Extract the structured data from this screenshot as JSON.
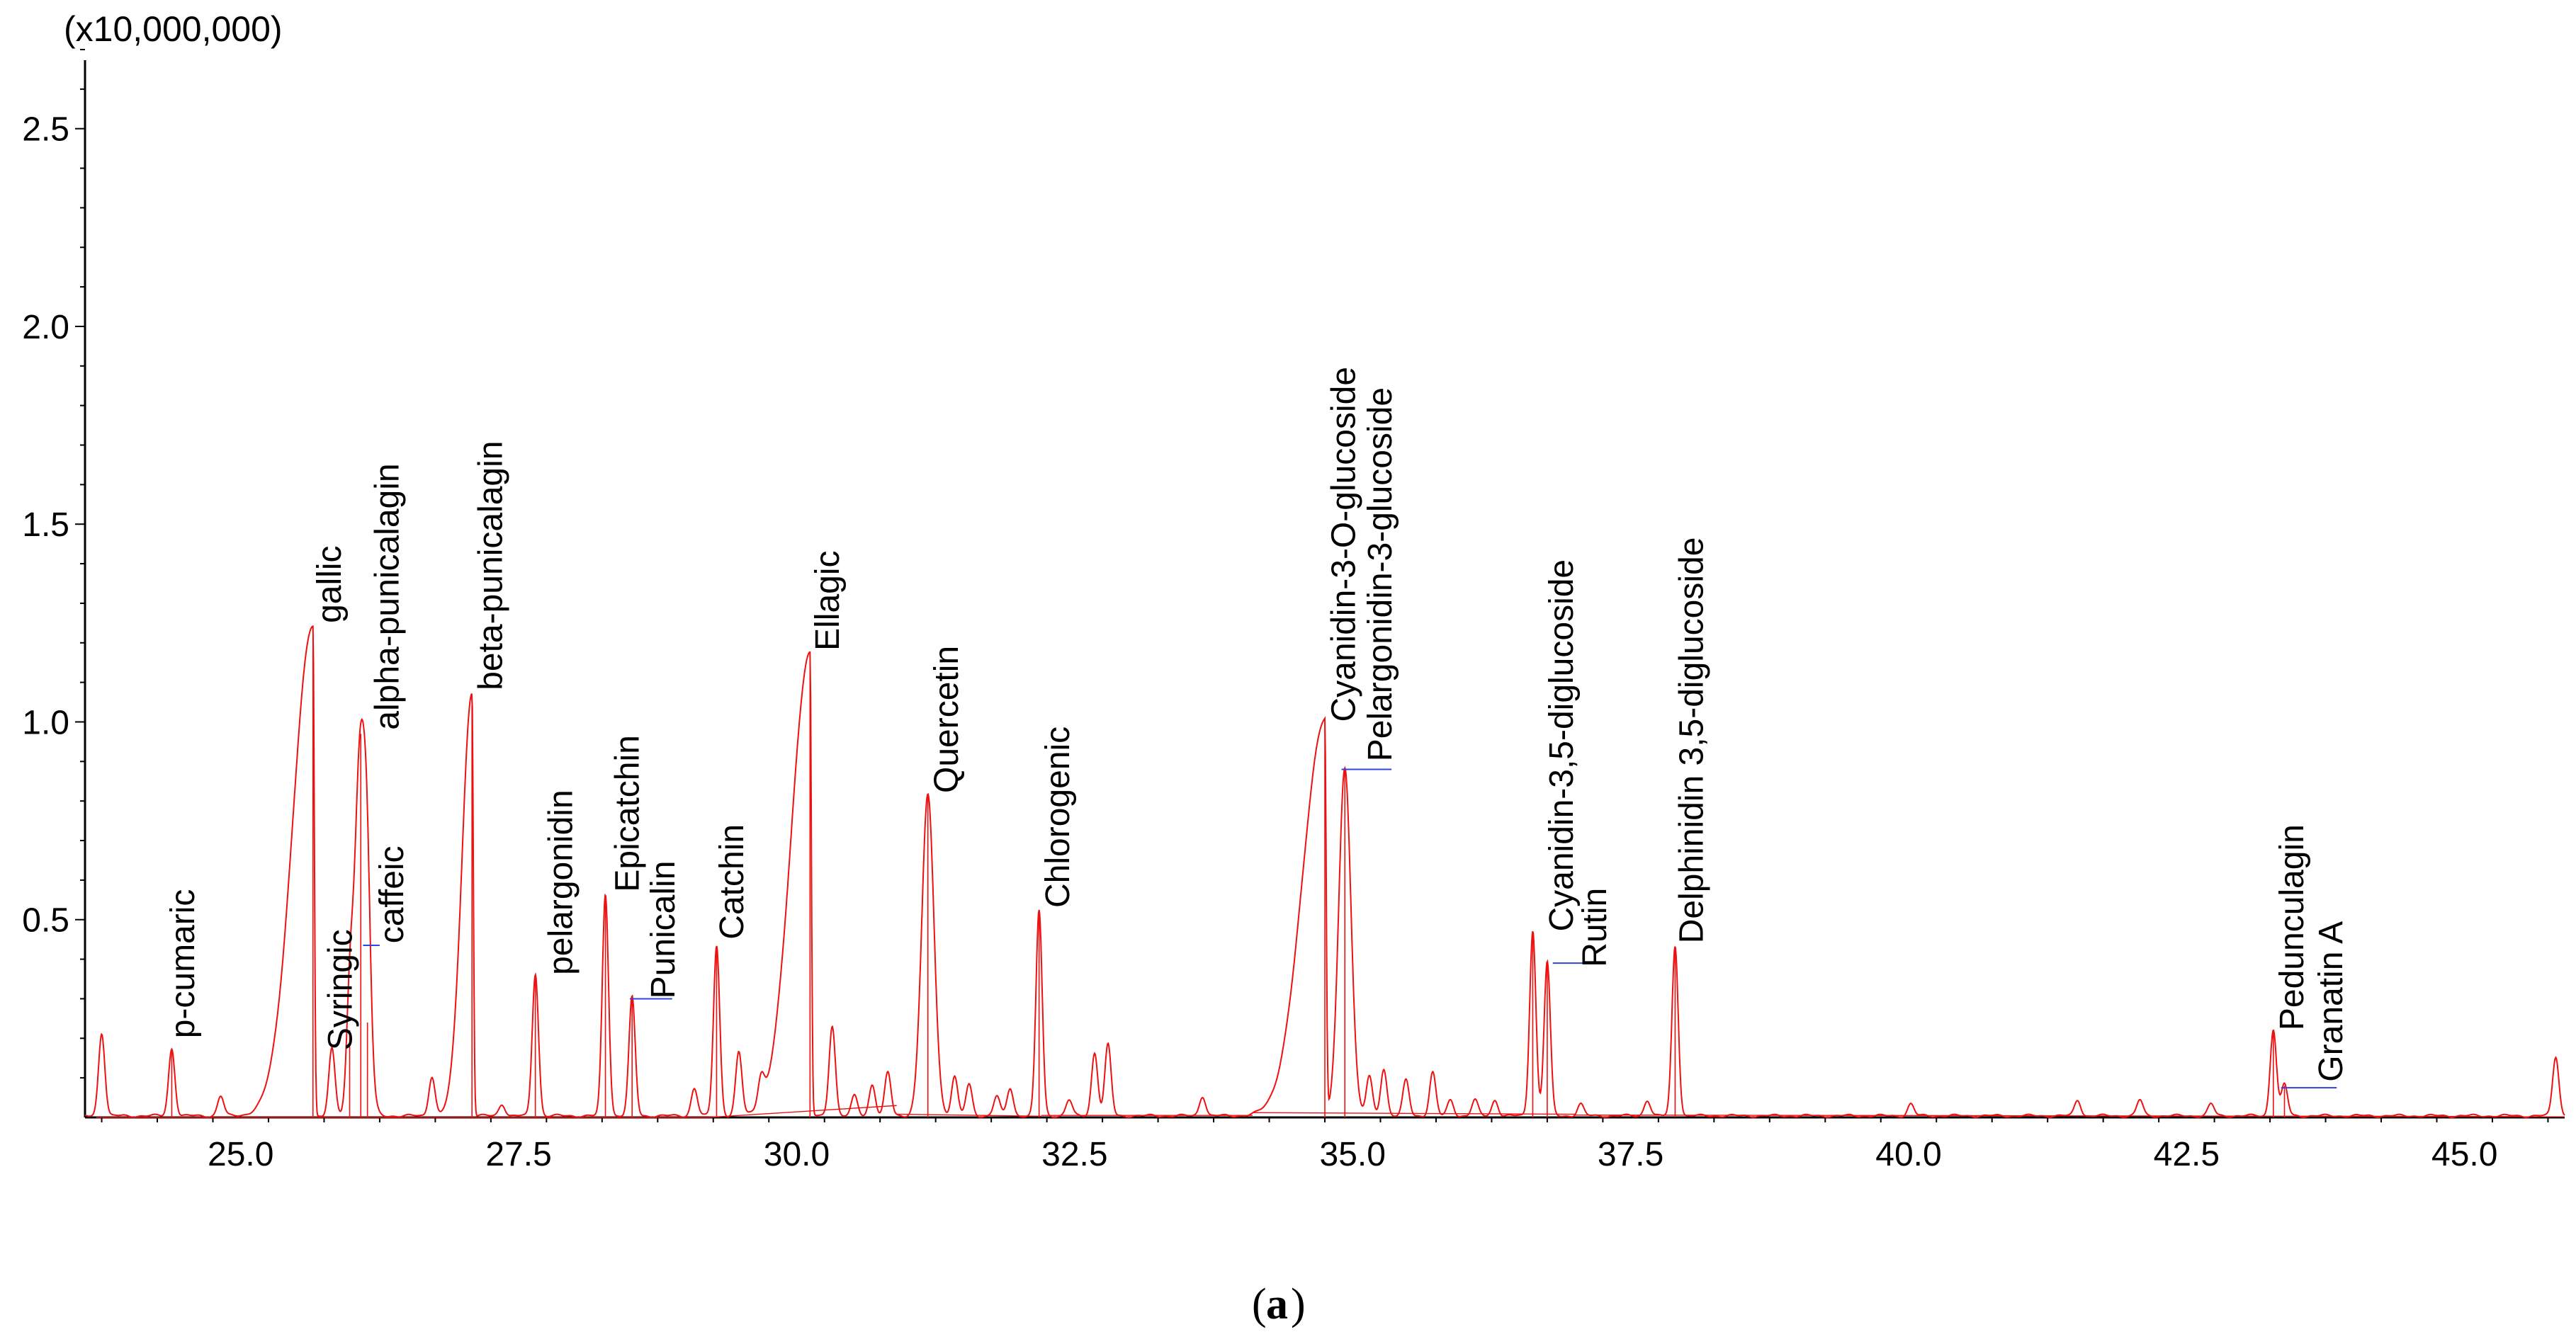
{
  "chart_data": {
    "type": "line",
    "scale_label": "(x10,000,000)",
    "xlabel": "",
    "ylabel": "",
    "xlim": [
      23.6,
      45.9
    ],
    "ylim": [
      0,
      2.7
    ],
    "x_ticks": [
      "25.0",
      "27.5",
      "30.0",
      "32.5",
      "35.0",
      "37.5",
      "40.0",
      "42.5",
      "45.0"
    ],
    "y_ticks": [
      "0.5",
      "1.0",
      "1.5",
      "2.0",
      "2.5"
    ],
    "grid": false,
    "line_color": "#ee1111",
    "marker_color": "#3344dd",
    "peaks": [
      {
        "name": "p-cumaric",
        "rt": 24.38,
        "height": 0.17
      },
      {
        "name": "gallic",
        "rt": 25.65,
        "height": 1.24
      },
      {
        "name": "Syringic",
        "rt": 25.98,
        "height": 0.22
      },
      {
        "name": "alpha-punicalagin",
        "rt": 26.08,
        "height": 0.97
      },
      {
        "name": "caffeic",
        "rt": 26.14,
        "height": 0.24
      },
      {
        "name": "beta-punicalagin",
        "rt": 27.08,
        "height": 1.07
      },
      {
        "name": "pelargonidin",
        "rt": 27.65,
        "height": 0.36
      },
      {
        "name": "Epicatchin",
        "rt": 28.28,
        "height": 0.56
      },
      {
        "name": "Punicalin",
        "rt": 28.52,
        "height": 0.3
      },
      {
        "name": "Catchin",
        "rt": 29.28,
        "height": 0.43
      },
      {
        "name": "Ellagic",
        "rt": 30.12,
        "height": 1.17
      },
      {
        "name": "Quercetin",
        "rt": 31.18,
        "height": 0.81
      },
      {
        "name": "Chlorogenic",
        "rt": 32.18,
        "height": 0.52
      },
      {
        "name": "Cyanidin-3-O-glucoside",
        "rt": 34.75,
        "height": 1.0
      },
      {
        "name": "Pelargonidin-3-glucoside",
        "rt": 34.93,
        "height": 0.88
      },
      {
        "name": "Cyanidin-3,5-diglucoside",
        "rt": 36.62,
        "height": 0.47
      },
      {
        "name": "Rutin",
        "rt": 36.75,
        "height": 0.39
      },
      {
        "name": "Delphinidin 3,5-diglucoside",
        "rt": 37.9,
        "height": 0.43
      },
      {
        "name": "Pedunculagin",
        "rt": 43.28,
        "height": 0.22
      },
      {
        "name": "Granatin A",
        "rt": 43.38,
        "height": 0.08
      }
    ],
    "minor_peaks": [
      {
        "rt": 23.75,
        "height": 0.21
      },
      {
        "rt": 24.82,
        "height": 0.05
      },
      {
        "rt": 25.82,
        "height": 0.17
      },
      {
        "rt": 26.72,
        "height": 0.1
      },
      {
        "rt": 27.35,
        "height": 0.03
      },
      {
        "rt": 29.08,
        "height": 0.07
      },
      {
        "rt": 29.48,
        "height": 0.16
      },
      {
        "rt": 29.68,
        "height": 0.07
      },
      {
        "rt": 30.32,
        "height": 0.23
      },
      {
        "rt": 30.52,
        "height": 0.05
      },
      {
        "rt": 30.68,
        "height": 0.08
      },
      {
        "rt": 30.82,
        "height": 0.11
      },
      {
        "rt": 31.42,
        "height": 0.1
      },
      {
        "rt": 31.55,
        "height": 0.08
      },
      {
        "rt": 31.8,
        "height": 0.05
      },
      {
        "rt": 31.92,
        "height": 0.07
      },
      {
        "rt": 32.45,
        "height": 0.04
      },
      {
        "rt": 32.68,
        "height": 0.16
      },
      {
        "rt": 32.8,
        "height": 0.18
      },
      {
        "rt": 33.65,
        "height": 0.05
      },
      {
        "rt": 35.15,
        "height": 0.1
      },
      {
        "rt": 35.28,
        "height": 0.12
      },
      {
        "rt": 35.48,
        "height": 0.09
      },
      {
        "rt": 35.72,
        "height": 0.11
      },
      {
        "rt": 35.88,
        "height": 0.04
      },
      {
        "rt": 36.1,
        "height": 0.04
      },
      {
        "rt": 36.28,
        "height": 0.04
      },
      {
        "rt": 37.05,
        "height": 0.03
      },
      {
        "rt": 37.65,
        "height": 0.04
      },
      {
        "rt": 40.02,
        "height": 0.03
      },
      {
        "rt": 41.52,
        "height": 0.04
      },
      {
        "rt": 42.08,
        "height": 0.04
      },
      {
        "rt": 42.72,
        "height": 0.03
      },
      {
        "rt": 45.82,
        "height": 0.15
      }
    ]
  },
  "caption": {
    "open": "(",
    "letter": "a",
    "close": ")"
  }
}
